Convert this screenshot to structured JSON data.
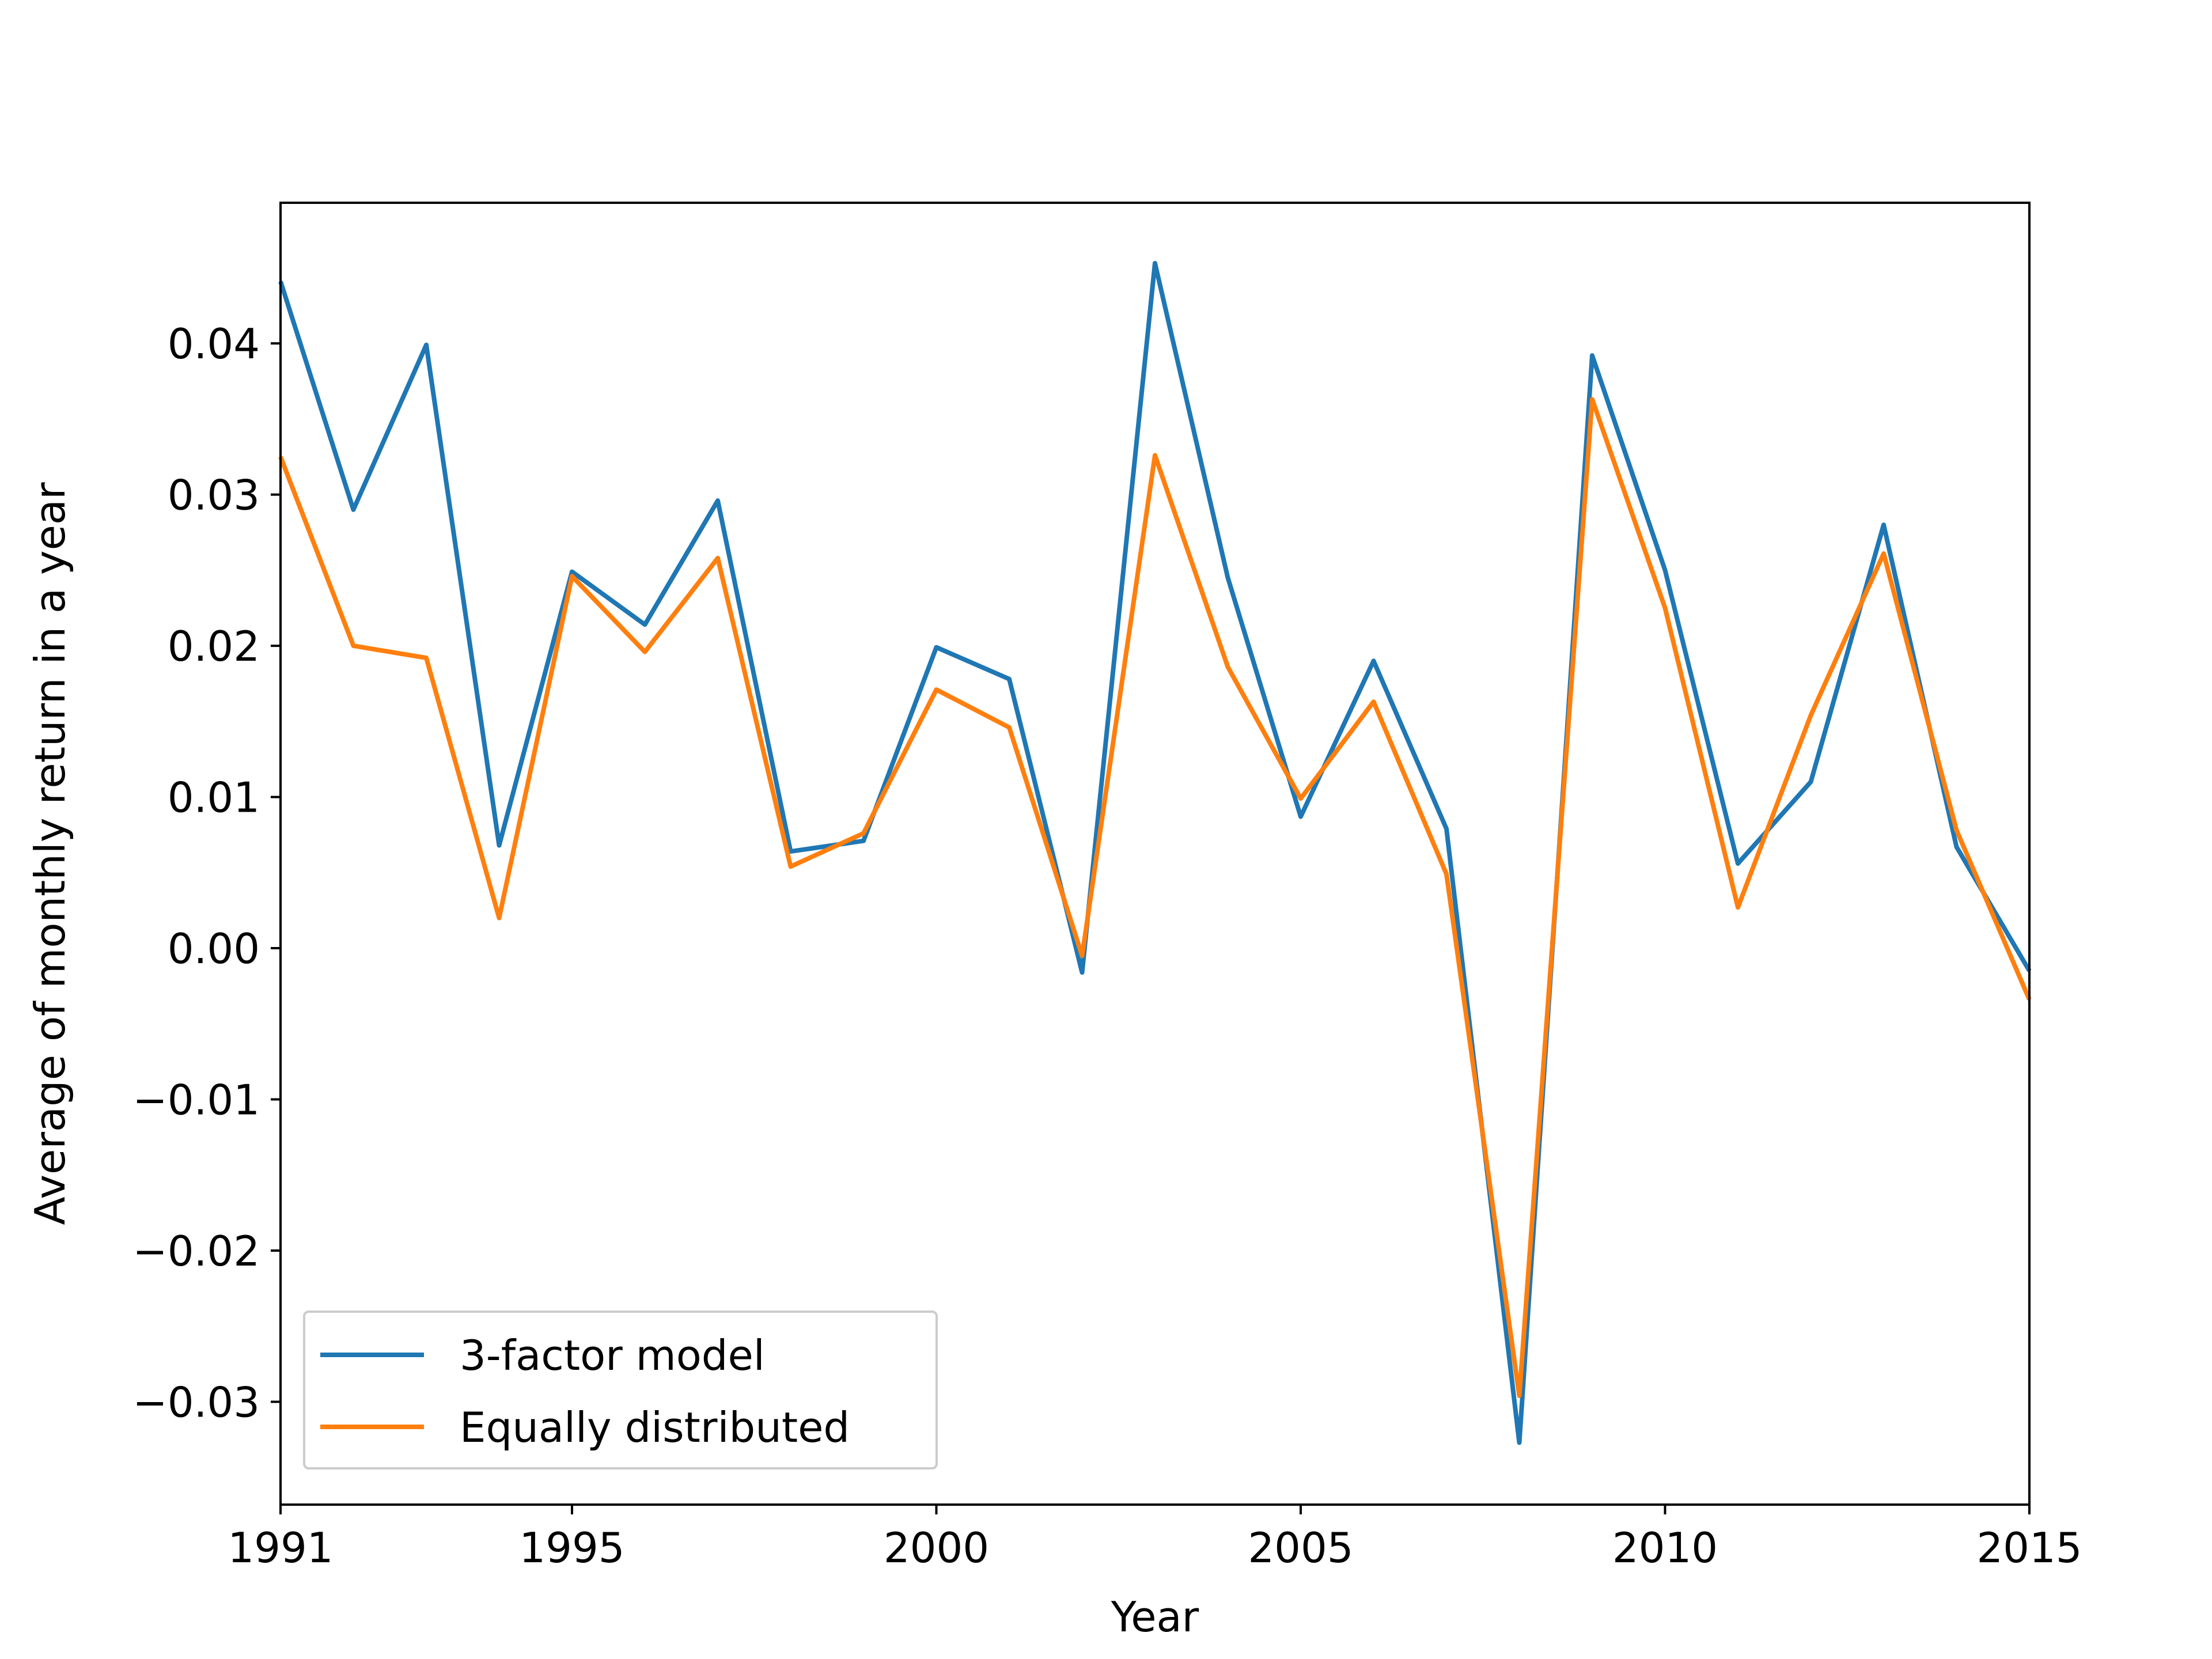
{
  "chart_data": {
    "type": "line",
    "title": "",
    "xlabel": "Year",
    "ylabel": "Average of monthly return in a year",
    "xlim": [
      1991,
      2015
    ],
    "ylim": [
      -0.0368,
      0.0493
    ],
    "x_ticks": [
      1991,
      1995,
      2000,
      2005,
      2010,
      2015
    ],
    "x_tick_labels": [
      "1991",
      "1995",
      "2000",
      "2005",
      "2010",
      "2015"
    ],
    "y_ticks": [
      -0.03,
      -0.02,
      -0.01,
      0.0,
      0.01,
      0.02,
      0.03,
      0.04
    ],
    "y_tick_labels": [
      "−0.03",
      "−0.02",
      "−0.01",
      "0.00",
      "0.01",
      "0.02",
      "0.03",
      "0.04"
    ],
    "grid": false,
    "legend_position": "lower-left",
    "x": [
      1991,
      1992,
      1993,
      1994,
      1995,
      1996,
      1997,
      1998,
      1999,
      2000,
      2001,
      2002,
      2003,
      2004,
      2005,
      2006,
      2007,
      2008,
      2009,
      2010,
      2011,
      2012,
      2013,
      2014,
      2015
    ],
    "series": [
      {
        "name": "3-factor model",
        "color": "#1f77b4",
        "values": [
          0.0441,
          0.029,
          0.0399,
          0.0068,
          0.0249,
          0.0214,
          0.0296,
          0.0064,
          0.0071,
          0.0199,
          0.0178,
          -0.0016,
          0.0453,
          0.0245,
          0.0087,
          0.019,
          0.0079,
          -0.0327,
          0.0392,
          0.025,
          0.0056,
          0.011,
          0.028,
          0.0067,
          -0.0015
        ]
      },
      {
        "name": "Equally distributed",
        "color": "#ff7f0e",
        "values": [
          0.0325,
          0.02,
          0.0192,
          0.002,
          0.0246,
          0.0196,
          0.0258,
          0.0054,
          0.0076,
          0.0171,
          0.0146,
          -0.0005,
          0.0326,
          0.0186,
          0.0099,
          0.0163,
          0.0049,
          -0.0296,
          0.0363,
          0.0225,
          0.0027,
          0.0154,
          0.0261,
          0.0078,
          -0.0034
        ]
      }
    ]
  }
}
